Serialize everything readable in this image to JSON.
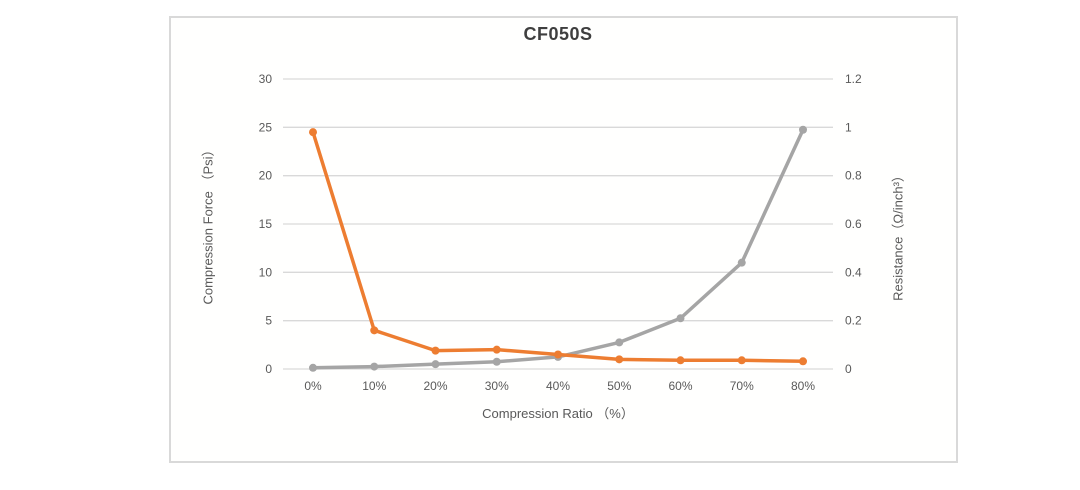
{
  "chart_data": {
    "type": "line",
    "title": "CF050S",
    "xlabel": "Compression Ratio （%）",
    "ylabel_left": "Compression Force （Psi）",
    "ylabel_right": "Resistance（Ω/inch³）",
    "categories": [
      "0%",
      "10%",
      "20%",
      "30%",
      "40%",
      "50%",
      "60%",
      "70%",
      "80%"
    ],
    "series": [
      {
        "id": "compression-force",
        "name": "Compression Force (Psi)",
        "axis": "left",
        "color": "#ED7D31",
        "values": [
          24.5,
          4,
          1.9,
          2,
          1.5,
          1,
          0.9,
          0.9,
          0.8
        ]
      },
      {
        "id": "resistance",
        "name": "Resistance (Ω/inch³)",
        "axis": "right",
        "color": "#A5A5A5",
        "values": [
          0.005,
          0.01,
          0.02,
          0.03,
          0.05,
          0.11,
          0.21,
          0.44,
          0.99
        ]
      }
    ],
    "y_left": {
      "min": 0,
      "max": 30,
      "ticks": [
        "0",
        "5",
        "10",
        "15",
        "20",
        "25",
        "30"
      ]
    },
    "y_right": {
      "min": 0,
      "max": 1.2,
      "ticks": [
        "0",
        "0.2",
        "0.4",
        "0.6",
        "0.8",
        "1",
        "1.2"
      ]
    },
    "grid": true,
    "legend": false,
    "colors": {
      "gridline": "#D9D9D9",
      "tick_text": "#595959",
      "title_text": "#3F3F3F",
      "frame_border": "#D9D9D9"
    }
  }
}
